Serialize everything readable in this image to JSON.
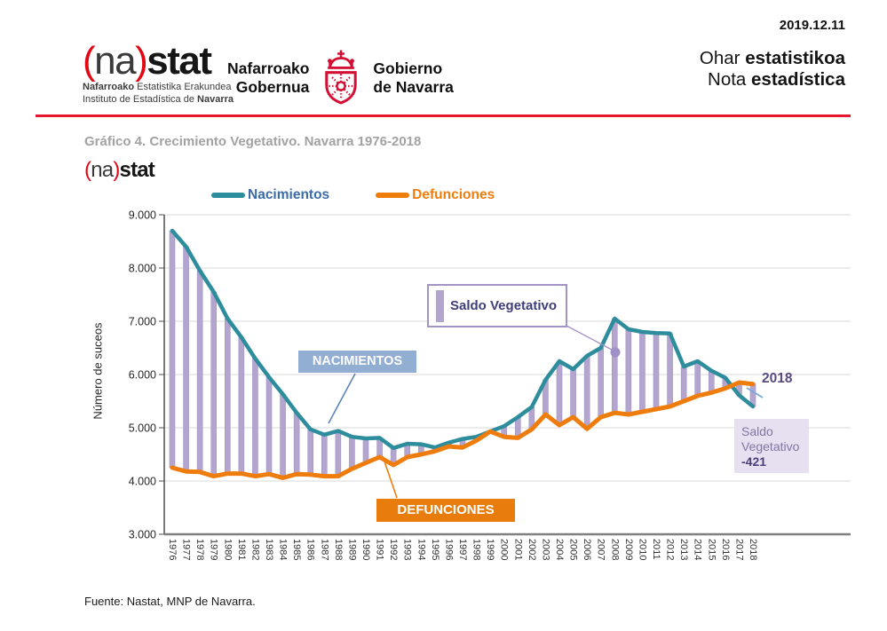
{
  "page": {
    "date": "2019.12.11",
    "source": "Fuente: Nastat, MNP de Navarra."
  },
  "header": {
    "nastat": {
      "open": "(",
      "na": "na",
      "close": ")",
      "stat": "stat",
      "sub1_bold": "Nafarroako",
      "sub1_rest": " Estatistika Erakundea",
      "sub2_rest": "Instituto de Estadística de ",
      "sub2_bold": "Navarra"
    },
    "gobierno": {
      "basque1": "Nafarroako",
      "basque2": "Gobernua",
      "spanish1": "Gobierno",
      "spanish2": "de Navarra"
    },
    "nota": {
      "l1a": "Ohar ",
      "l1b": "estatistikoa",
      "l2a": "Nota ",
      "l2b": "estadística"
    }
  },
  "chart": {
    "title": "Gráfico 4. Crecimiento Vegetativo. Navarra 1976-2018",
    "annotations": {
      "nacimientos": "NACIMIENTOS",
      "defunciones": "DEFUNCIONES",
      "saldo_callout": "Saldo Vegetativo",
      "year_end": "2018",
      "saldo_box_line1": "Saldo",
      "saldo_box_line2": "Vegetativo",
      "saldo_box_value": "-421"
    }
  },
  "chart_data": {
    "type": "line",
    "title": "Gráfico 4. Crecimiento Vegetativo. Navarra 1976-2018",
    "ylabel": "Número de suceos",
    "ylim": [
      3000,
      9000
    ],
    "ytick_step": 1000,
    "ytick_labels": [
      "9.000",
      "8.000",
      "7.000",
      "6.000",
      "5.000",
      "4.000",
      "3.000"
    ],
    "grid": true,
    "legend_position": "top",
    "x": [
      1976,
      1977,
      1978,
      1979,
      1980,
      1981,
      1982,
      1983,
      1984,
      1985,
      1986,
      1987,
      1988,
      1989,
      1990,
      1991,
      1992,
      1993,
      1994,
      1995,
      1996,
      1997,
      1998,
      1999,
      2000,
      2001,
      2002,
      2003,
      2004,
      2005,
      2006,
      2007,
      2008,
      2009,
      2010,
      2011,
      2012,
      2013,
      2014,
      2015,
      2016,
      2017,
      2018
    ],
    "series": [
      {
        "name": "Nacimientos",
        "color": "#2e8d9d",
        "values": [
          8700,
          8400,
          7950,
          7550,
          7050,
          6700,
          6300,
          5950,
          5630,
          5280,
          4970,
          4870,
          4940,
          4830,
          4800,
          4810,
          4620,
          4700,
          4690,
          4630,
          4720,
          4790,
          4830,
          4930,
          5030,
          5200,
          5390,
          5900,
          6250,
          6100,
          6350,
          6500,
          7050,
          6850,
          6800,
          6780,
          6770,
          6150,
          6250,
          6070,
          5940,
          5610,
          5400
        ]
      },
      {
        "name": "Defunciones",
        "color": "#ee7d0e",
        "values": [
          4250,
          4180,
          4170,
          4090,
          4140,
          4140,
          4090,
          4130,
          4060,
          4130,
          4120,
          4090,
          4090,
          4230,
          4340,
          4450,
          4300,
          4450,
          4500,
          4560,
          4650,
          4630,
          4760,
          4930,
          4830,
          4810,
          4970,
          5250,
          5050,
          5200,
          4980,
          5200,
          5280,
          5250,
          5300,
          5350,
          5400,
          5500,
          5600,
          5660,
          5740,
          5850,
          5821
        ]
      }
    ],
    "saldo_bars": {
      "label": "Saldo Vegetativo",
      "color": "#b4a5cf",
      "derived": "Nacimientos - Defunciones"
    },
    "highlight": {
      "year": 2018,
      "saldo_vegetativo": -421
    }
  },
  "colors": {
    "births_line": "#2e8d9d",
    "deaths_line": "#ee7d0e",
    "saldo_bar": "#b4a5cf",
    "saldo_bar_edge": "#a294c6",
    "purple_dark": "#4a3e78",
    "purple_mid": "#8376a0",
    "lavender_bg": "#e6e0f1",
    "callout_border": "#a294c6",
    "nacimientos_badge_bg": "#92aed2",
    "defunciones_badge_bg": "#e87d0e",
    "legend_births_text": "#3c6ca8",
    "header_rule": "#e6172e",
    "logo_red": "#e30613",
    "title_gray": "#a2a2a2",
    "gridline": "#d9d9d9"
  }
}
